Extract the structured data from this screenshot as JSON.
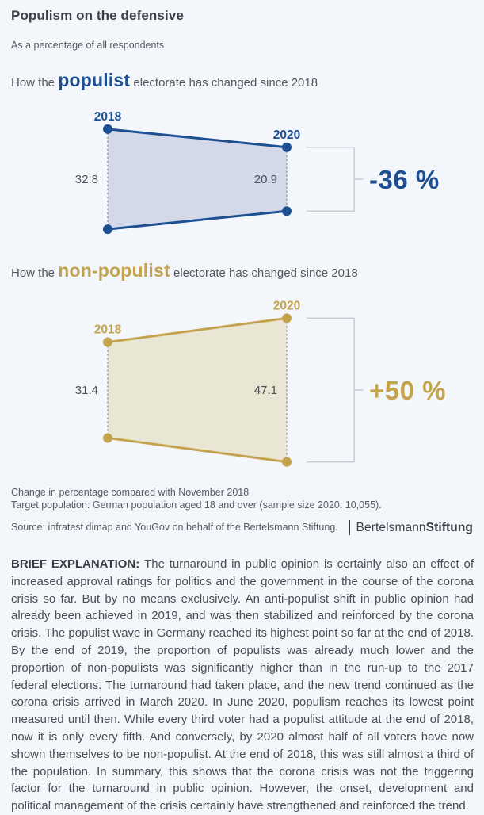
{
  "page": {
    "title": "Populism on the defensive",
    "subtitle": "As a percentage of all respondents"
  },
  "charts": [
    {
      "heading_prefix": "How the ",
      "heading_keyword": "populist",
      "heading_suffix": " electorate has changed since 2018",
      "accent_color": "#1d4f93",
      "fill_color": "#d3d9e8",
      "left": {
        "year": "2018",
        "value": 32.8,
        "label": "32.8"
      },
      "right": {
        "year": "2020",
        "value": 20.9,
        "label": "20.9"
      },
      "change_label": "-36 %"
    },
    {
      "heading_prefix": "How the ",
      "heading_keyword": "non-populist",
      "heading_suffix": " electorate has changed since 2018",
      "accent_color": "#c4a34e",
      "fill_color": "#e9e6d3",
      "left": {
        "year": "2018",
        "value": 31.4,
        "label": "31.4"
      },
      "right": {
        "year": "2020",
        "value": 47.1,
        "label": "47.1"
      },
      "change_label": "+50 %"
    }
  ],
  "chart_data": [
    {
      "type": "area",
      "title": "How the populist electorate has changed since 2018",
      "x": [
        "2018",
        "2020"
      ],
      "values": [
        32.8,
        20.9
      ],
      "change": "-36 %",
      "unit": "percent of all respondents",
      "legend_position": "none",
      "grid": false
    },
    {
      "type": "area",
      "title": "How the non-populist electorate has changed since 2018",
      "x": [
        "2018",
        "2020"
      ],
      "values": [
        31.4,
        47.1
      ],
      "change": "+50 %",
      "unit": "percent of all respondents",
      "legend_position": "none",
      "grid": false
    }
  ],
  "footnotes": [
    "Change in percentage compared with November 2018",
    "Target population: German population aged 18 and over (sample size 2020: 10,055)."
  ],
  "source": "Source: infratest dimap and YouGov on behalf of the Bertelsmann Stiftung.",
  "logo": {
    "part1": "Bertelsmann",
    "part2": "Stiftung"
  },
  "explanation": {
    "label": "BRIEF EXPLANATION: ",
    "text": "The turnaround in public opinion is certainly also an effect of increased approval ratings for politics and the government in the course of the corona crisis so far. But by no means exclusively. An anti-populist shift in public opinion had already been achieved in 2019, and was then stabilized and reinforced by the corona crisis. The populist wave in Germany reached its highest point so far at the end of 2018. By the end of 2019, the proportion of populists was already much lower and the proportion of non-populists was significantly higher than in the run-up to the 2017 federal elections. The turnaround had taken place, and the new trend continued as the corona crisis arrived in March 2020. In June 2020, populism reaches its lowest point measured until then. While every third voter had a populist attitude at the end of 2018, now it is only every fifth. And conversely, by 2020 almost half of all voters have now shown themselves to be non-populist. At the end of 2018, this was still almost a third of the population. In summary, this shows that the corona crisis was not the triggering factor for the turnaround in public opinion. However, the onset, development and political management of the crisis certainly have strengthened and reinforced the trend."
  }
}
